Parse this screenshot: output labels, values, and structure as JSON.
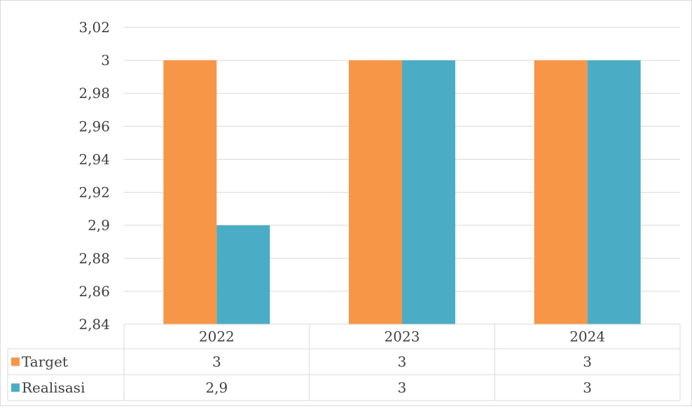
{
  "chart_data": {
    "type": "bar",
    "title": "",
    "xlabel": "",
    "ylabel": "",
    "categories": [
      "2022",
      "2023",
      "2024"
    ],
    "series": [
      {
        "name": "Target",
        "values": [
          3,
          3,
          3
        ],
        "color": "#F79646"
      },
      {
        "name": "Realisasi",
        "values": [
          2.9,
          3,
          3
        ],
        "color": "#4BACC6"
      }
    ],
    "ylim": [
      2.84,
      3.02
    ],
    "y_ticks": [
      "2,84",
      "2,86",
      "2,88",
      "2,9",
      "2,92",
      "2,94",
      "2,96",
      "2,98",
      "3",
      "3,02"
    ],
    "grid": true,
    "legend": "data-table",
    "data_table": {
      "rows": [
        {
          "label": "Target",
          "cells": [
            "3",
            "3",
            "3"
          ]
        },
        {
          "label": "Realisasi",
          "cells": [
            "2,9",
            "3",
            "3"
          ]
        }
      ]
    },
    "colors": {
      "grid": "#D9D9D9",
      "text": "#404040",
      "border": "#D9D9D9"
    }
  }
}
